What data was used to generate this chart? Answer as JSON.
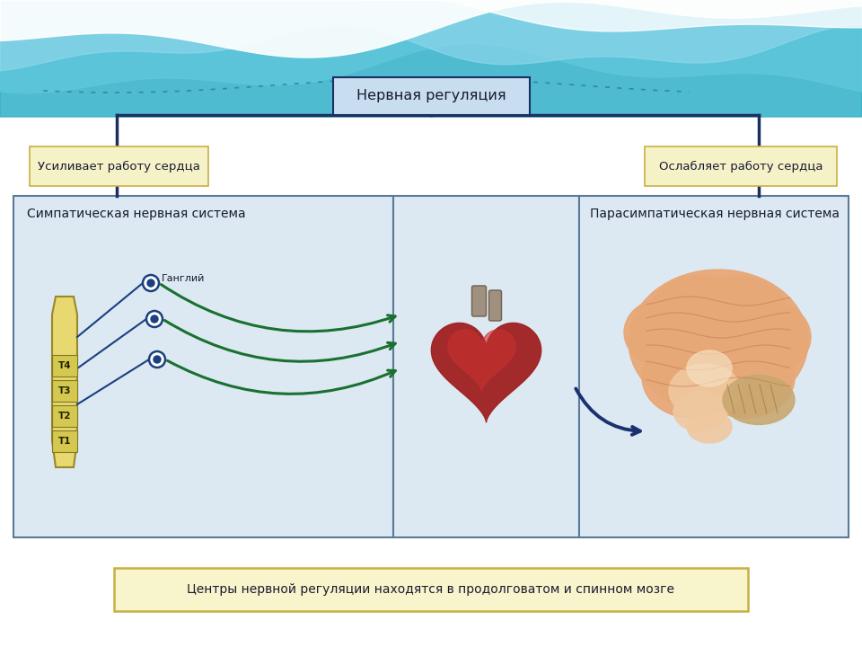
{
  "title_box_text": "Нервная регуляция",
  "left_label_text": "Усиливает работу сердца",
  "right_label_text": "Ослабляет работу сердца",
  "left_panel_title": "Симпатическая нервная система",
  "right_panel_title": "Парасимпатическая нервная система",
  "bottom_text": "Центры нервной регуляции находятся в продолговатом и спинном мозге",
  "ganglion_label": "Ганглий",
  "spine_labels": [
    "T1",
    "T2",
    "T3",
    "T4"
  ],
  "bg_color": "#ddeef5",
  "wave_dark": "#30b0c8",
  "wave_mid": "#60c8dc",
  "wave_light": "#90d8ec",
  "white_color": "#ffffff",
  "title_box_face": "#c8ddf0",
  "title_box_edge": "#1a3060",
  "label_box_face": "#f5f2c8",
  "label_box_edge": "#c8b040",
  "panel_face": "#dce9f2",
  "panel_edge": "#5a7a9a",
  "bottom_face": "#f8f5cc",
  "bottom_edge": "#c8b040",
  "spine_face": "#e8d870",
  "spine_edge": "#9a8828",
  "nerve_blue": "#1a4080",
  "arrow_green": "#1a7030",
  "arrow_blue_dark": "#1a3070",
  "text_dark": "#1a1a30",
  "connect_color": "#1a3060",
  "heart_dark": "#a02020",
  "heart_mid": "#c83030",
  "heart_light": "#e05050",
  "brain_outer": "#e8a878",
  "brain_mid": "#d89060",
  "brain_inner": "#f0c8a0",
  "brain_stem": "#c8a870"
}
